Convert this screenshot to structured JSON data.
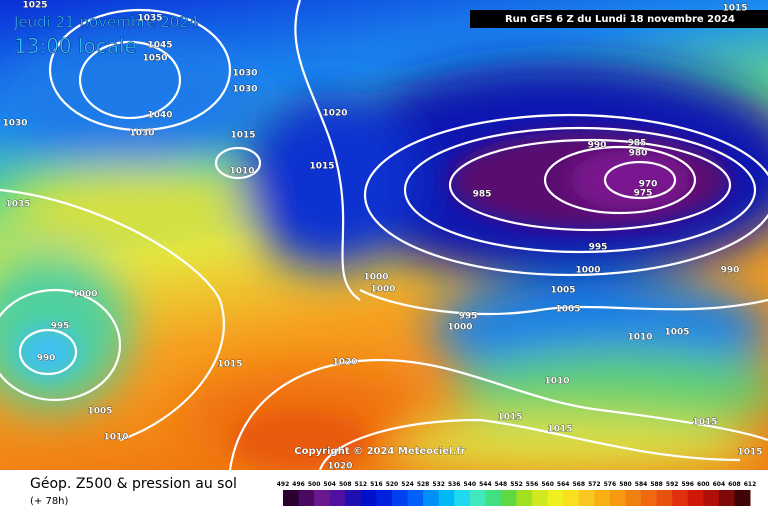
{
  "header": {
    "date": "Jeudi 21 novembre 2024",
    "time": "13:00 locale",
    "run": "Run GFS 6 Z du Lundi 18 novembre 2024"
  },
  "copyright": "Copyright © 2024 Meteociel.fr",
  "footer": {
    "title": "Géop. Z500 & pression au sol",
    "lead": "(+ 78h)"
  },
  "isobar_labels": [
    1015,
    1025,
    1035,
    1045,
    1050,
    1030,
    1030,
    1040,
    1030,
    1030,
    1015,
    1020,
    1010,
    1015,
    1035,
    990,
    985,
    980,
    970,
    975,
    985,
    995,
    1000,
    990,
    1000,
    1000,
    1005,
    1005,
    1000,
    995,
    995,
    1000,
    990,
    1010,
    1005,
    1015,
    1020,
    1010,
    1005,
    1010,
    1015,
    1015,
    1015,
    1015,
    1020
  ],
  "scale": {
    "labels": [
      492,
      496,
      500,
      504,
      508,
      512,
      516,
      520,
      524,
      528,
      532,
      536,
      540,
      544,
      548,
      552,
      556,
      560,
      564,
      568,
      572,
      576,
      580,
      584,
      588,
      592,
      596,
      600,
      604,
      608,
      612
    ]
  }
}
